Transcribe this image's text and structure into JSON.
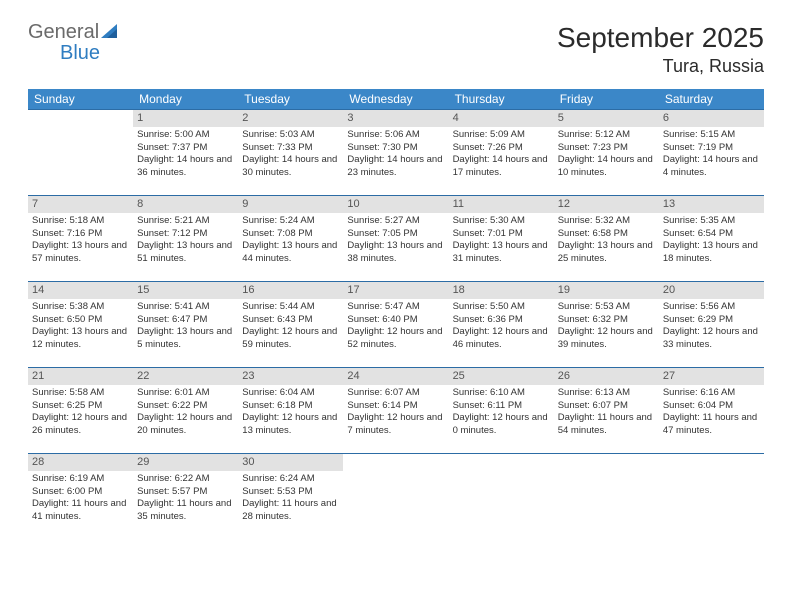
{
  "brand": {
    "word1": "General",
    "word2": "Blue"
  },
  "title": "September 2025",
  "location": "Tura, Russia",
  "colors": {
    "header_bg": "#3b87c8",
    "header_text": "#ffffff",
    "daynum_bg": "#e2e2e2",
    "row_border": "#2c6ca5",
    "logo_blue": "#2f7dc1",
    "logo_gray": "#6a6a6a"
  },
  "weekdays": [
    "Sunday",
    "Monday",
    "Tuesday",
    "Wednesday",
    "Thursday",
    "Friday",
    "Saturday"
  ],
  "start_offset": 1,
  "days": [
    {
      "n": 1,
      "sunrise": "5:00 AM",
      "sunset": "7:37 PM",
      "daylight": "14 hours and 36 minutes."
    },
    {
      "n": 2,
      "sunrise": "5:03 AM",
      "sunset": "7:33 PM",
      "daylight": "14 hours and 30 minutes."
    },
    {
      "n": 3,
      "sunrise": "5:06 AM",
      "sunset": "7:30 PM",
      "daylight": "14 hours and 23 minutes."
    },
    {
      "n": 4,
      "sunrise": "5:09 AM",
      "sunset": "7:26 PM",
      "daylight": "14 hours and 17 minutes."
    },
    {
      "n": 5,
      "sunrise": "5:12 AM",
      "sunset": "7:23 PM",
      "daylight": "14 hours and 10 minutes."
    },
    {
      "n": 6,
      "sunrise": "5:15 AM",
      "sunset": "7:19 PM",
      "daylight": "14 hours and 4 minutes."
    },
    {
      "n": 7,
      "sunrise": "5:18 AM",
      "sunset": "7:16 PM",
      "daylight": "13 hours and 57 minutes."
    },
    {
      "n": 8,
      "sunrise": "5:21 AM",
      "sunset": "7:12 PM",
      "daylight": "13 hours and 51 minutes."
    },
    {
      "n": 9,
      "sunrise": "5:24 AM",
      "sunset": "7:08 PM",
      "daylight": "13 hours and 44 minutes."
    },
    {
      "n": 10,
      "sunrise": "5:27 AM",
      "sunset": "7:05 PM",
      "daylight": "13 hours and 38 minutes."
    },
    {
      "n": 11,
      "sunrise": "5:30 AM",
      "sunset": "7:01 PM",
      "daylight": "13 hours and 31 minutes."
    },
    {
      "n": 12,
      "sunrise": "5:32 AM",
      "sunset": "6:58 PM",
      "daylight": "13 hours and 25 minutes."
    },
    {
      "n": 13,
      "sunrise": "5:35 AM",
      "sunset": "6:54 PM",
      "daylight": "13 hours and 18 minutes."
    },
    {
      "n": 14,
      "sunrise": "5:38 AM",
      "sunset": "6:50 PM",
      "daylight": "13 hours and 12 minutes."
    },
    {
      "n": 15,
      "sunrise": "5:41 AM",
      "sunset": "6:47 PM",
      "daylight": "13 hours and 5 minutes."
    },
    {
      "n": 16,
      "sunrise": "5:44 AM",
      "sunset": "6:43 PM",
      "daylight": "12 hours and 59 minutes."
    },
    {
      "n": 17,
      "sunrise": "5:47 AM",
      "sunset": "6:40 PM",
      "daylight": "12 hours and 52 minutes."
    },
    {
      "n": 18,
      "sunrise": "5:50 AM",
      "sunset": "6:36 PM",
      "daylight": "12 hours and 46 minutes."
    },
    {
      "n": 19,
      "sunrise": "5:53 AM",
      "sunset": "6:32 PM",
      "daylight": "12 hours and 39 minutes."
    },
    {
      "n": 20,
      "sunrise": "5:56 AM",
      "sunset": "6:29 PM",
      "daylight": "12 hours and 33 minutes."
    },
    {
      "n": 21,
      "sunrise": "5:58 AM",
      "sunset": "6:25 PM",
      "daylight": "12 hours and 26 minutes."
    },
    {
      "n": 22,
      "sunrise": "6:01 AM",
      "sunset": "6:22 PM",
      "daylight": "12 hours and 20 minutes."
    },
    {
      "n": 23,
      "sunrise": "6:04 AM",
      "sunset": "6:18 PM",
      "daylight": "12 hours and 13 minutes."
    },
    {
      "n": 24,
      "sunrise": "6:07 AM",
      "sunset": "6:14 PM",
      "daylight": "12 hours and 7 minutes."
    },
    {
      "n": 25,
      "sunrise": "6:10 AM",
      "sunset": "6:11 PM",
      "daylight": "12 hours and 0 minutes."
    },
    {
      "n": 26,
      "sunrise": "6:13 AM",
      "sunset": "6:07 PM",
      "daylight": "11 hours and 54 minutes."
    },
    {
      "n": 27,
      "sunrise": "6:16 AM",
      "sunset": "6:04 PM",
      "daylight": "11 hours and 47 minutes."
    },
    {
      "n": 28,
      "sunrise": "6:19 AM",
      "sunset": "6:00 PM",
      "daylight": "11 hours and 41 minutes."
    },
    {
      "n": 29,
      "sunrise": "6:22 AM",
      "sunset": "5:57 PM",
      "daylight": "11 hours and 35 minutes."
    },
    {
      "n": 30,
      "sunrise": "6:24 AM",
      "sunset": "5:53 PM",
      "daylight": "11 hours and 28 minutes."
    }
  ],
  "labels": {
    "sunrise": "Sunrise:",
    "sunset": "Sunset:",
    "daylight": "Daylight:"
  }
}
